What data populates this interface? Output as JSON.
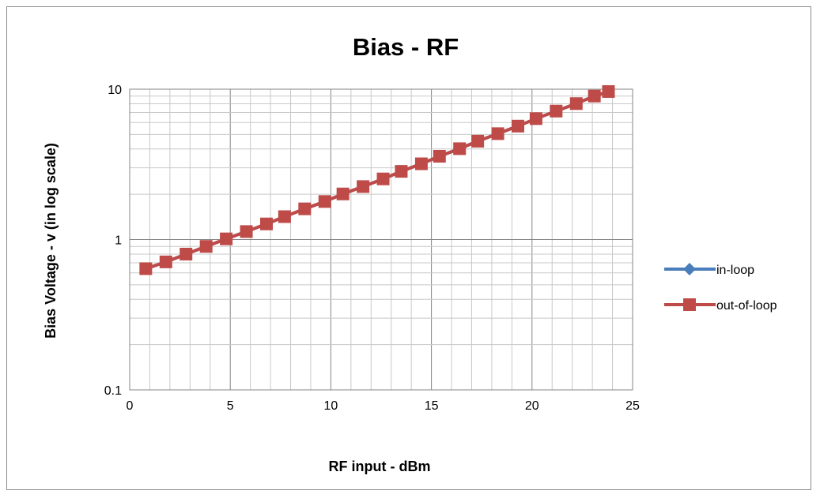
{
  "chart_data": {
    "type": "line",
    "title": "Bias - RF",
    "xlabel": "RF input - dBm",
    "ylabel": "Bias Voltage - v (in log scale)",
    "xlim": [
      0,
      25
    ],
    "ylim": [
      0.1,
      10
    ],
    "y_scale": "log",
    "grid": true,
    "legend_position": "right",
    "x_ticks": [
      0,
      5,
      10,
      15,
      20,
      25
    ],
    "y_ticks": [
      0.1,
      1,
      10
    ],
    "x_tick_labels": [
      "0",
      "5",
      "10",
      "15",
      "20",
      "25"
    ],
    "y_tick_labels": [
      "0.1",
      "1",
      "10"
    ],
    "x": [
      0.8,
      1.8,
      2.8,
      3.8,
      4.8,
      5.8,
      6.8,
      7.7,
      8.7,
      9.7,
      10.6,
      11.6,
      12.6,
      13.5,
      14.5,
      15.4,
      16.4,
      17.3,
      18.3,
      19.3,
      20.2,
      21.2,
      22.2,
      23.1,
      23.8
    ],
    "series": [
      {
        "name": "in-loop",
        "color": "#4a7ebb",
        "marker": "diamond",
        "values": [
          0.64,
          0.71,
          0.8,
          0.9,
          1.01,
          1.13,
          1.27,
          1.42,
          1.6,
          1.79,
          2.01,
          2.25,
          2.53,
          2.84,
          3.19,
          3.58,
          4.02,
          4.51,
          5.06,
          5.68,
          6.37,
          7.15,
          8.02,
          9.0,
          9.65
        ]
      },
      {
        "name": "out-of-loop",
        "color": "#be4b48",
        "marker": "square",
        "values": [
          0.64,
          0.71,
          0.8,
          0.9,
          1.01,
          1.13,
          1.27,
          1.42,
          1.6,
          1.79,
          2.01,
          2.25,
          2.53,
          2.84,
          3.19,
          3.58,
          4.02,
          4.51,
          5.06,
          5.68,
          6.37,
          7.15,
          8.02,
          9.0,
          9.65
        ]
      }
    ]
  }
}
